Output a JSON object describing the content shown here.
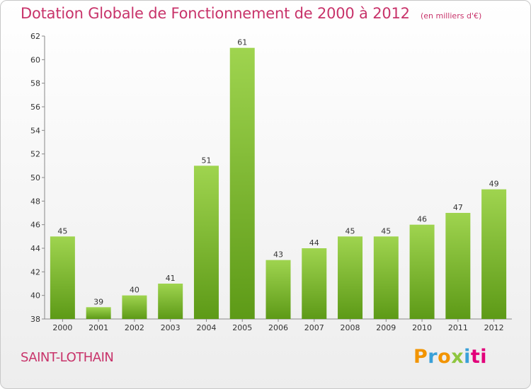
{
  "header": {
    "title": "Dotation Globale de Fonctionnement de 2000 à 2012",
    "subtitle": "(en milliers d'€)"
  },
  "footer": {
    "commune": "SAINT-LOTHAIN",
    "logo_letters": [
      "P",
      "r",
      "o",
      "x",
      "i",
      "ti"
    ]
  },
  "colors": {
    "accent": "#c8336a",
    "bar_top": "#9fd44f",
    "bar_bottom": "#5d9a17"
  },
  "chart_data": {
    "type": "bar",
    "title": "Dotation Globale de Fonctionnement de 2000 à 2012",
    "subtitle": "(en milliers d'€)",
    "categories": [
      "2000",
      "2001",
      "2002",
      "2003",
      "2004",
      "2005",
      "2006",
      "2007",
      "2008",
      "2009",
      "2010",
      "2011",
      "2012"
    ],
    "values": [
      45,
      39,
      40,
      41,
      51,
      61,
      43,
      44,
      45,
      45,
      46,
      47,
      49
    ],
    "ylim": [
      38,
      62
    ],
    "yticks": [
      38,
      40,
      42,
      44,
      46,
      48,
      50,
      52,
      54,
      56,
      58,
      60,
      62
    ],
    "grid": false,
    "xlabel": "",
    "ylabel": ""
  }
}
